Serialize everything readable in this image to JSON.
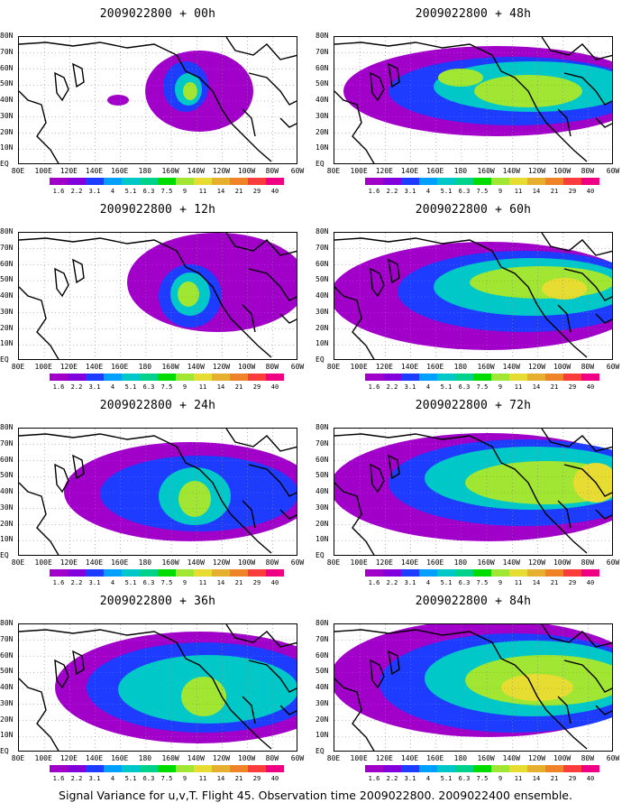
{
  "panels": [
    {
      "title": "2009022800 + 00h"
    },
    {
      "title": "2009022800 + 48h"
    },
    {
      "title": "2009022800 + 12h"
    },
    {
      "title": "2009022800 + 60h"
    },
    {
      "title": "2009022800 + 24h"
    },
    {
      "title": "2009022800 + 72h"
    },
    {
      "title": "2009022800 + 36h"
    },
    {
      "title": "2009022800 + 84h"
    }
  ],
  "lat_labels": [
    "80N",
    "70N",
    "60N",
    "50N",
    "40N",
    "30N",
    "20N",
    "10N",
    "EQ"
  ],
  "lon_labels": [
    "80E",
    "100E",
    "120E",
    "140E",
    "160E",
    "180",
    "160W",
    "140W",
    "120W",
    "100W",
    "80W",
    "60W"
  ],
  "colorbar": {
    "colors": [
      "#a000c8",
      "#8200dc",
      "#1e3cff",
      "#00a0ff",
      "#00c8c8",
      "#00d28c",
      "#00dc00",
      "#a0e632",
      "#e6dc32",
      "#e6af2d",
      "#f08228",
      "#fa3c3c",
      "#f00082"
    ],
    "labels": [
      "1.6",
      "2.2",
      "3.1",
      "4",
      "5.1",
      "6.3",
      "7.5",
      "9",
      "11",
      "14",
      "21",
      "29",
      "40"
    ]
  },
  "caption": "Signal Variance for u,v,T. Flight 45. Observation time 2009022800. 2009022400 ensemble."
}
